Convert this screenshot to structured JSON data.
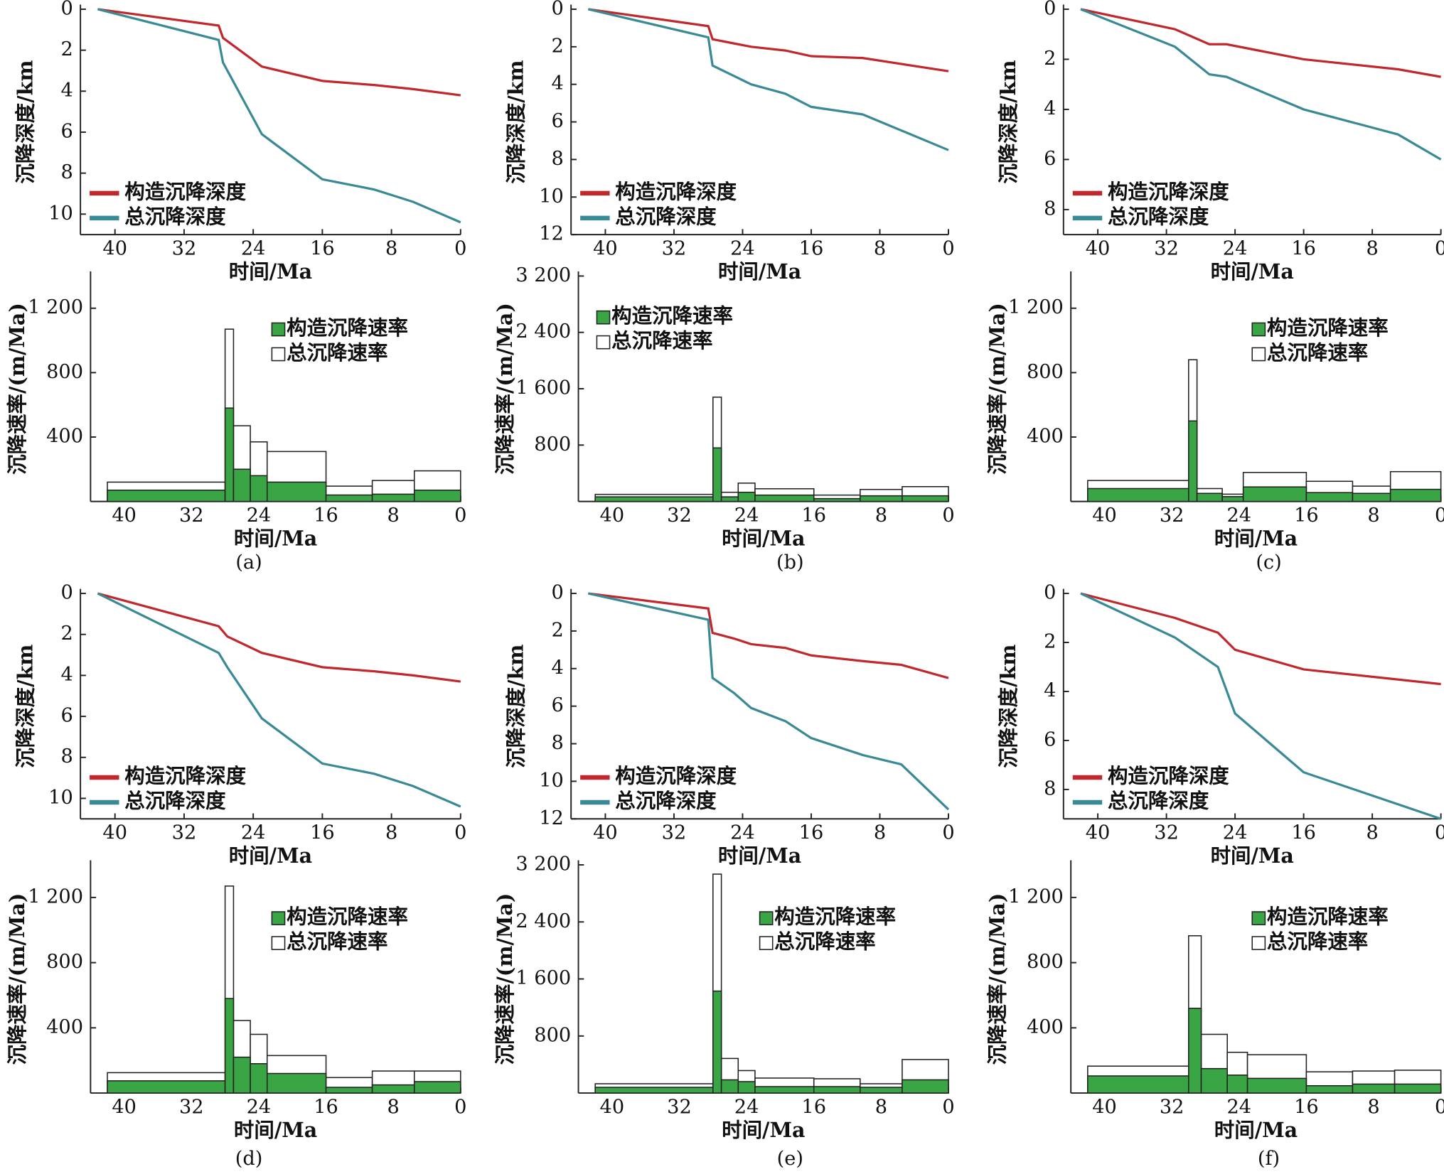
{
  "chart_data": [
    {
      "type": "line",
      "xlabel": "时间/Ma",
      "ylabel": "沉降深度/km",
      "xlim": [
        44,
        0
      ],
      "xticks": [
        40,
        32,
        24,
        16,
        8,
        0
      ],
      "ylim": [
        0,
        11
      ],
      "yticks": [
        0,
        2,
        4,
        6,
        8,
        10
      ],
      "y_inverted": true,
      "legend": "lower left",
      "x": [
        42,
        28,
        27.5,
        23,
        16,
        10,
        5.5,
        0
      ],
      "series": [
        {
          "name": "构造沉降深度",
          "color": "#c0282d",
          "values": [
            0,
            0.8,
            1.4,
            2.8,
            3.5,
            3.7,
            3.9,
            4.2
          ]
        },
        {
          "name": "总沉降深度",
          "color": "#3a8a96",
          "values": [
            0,
            1.5,
            2.6,
            6.1,
            8.3,
            8.8,
            9.4,
            10.4
          ]
        }
      ]
    },
    {
      "type": "histogram",
      "xlabel": "时间/Ma",
      "ylabel": "沉降速率/(m/Ma)",
      "xlim": [
        44,
        0
      ],
      "xticks": [
        40,
        32,
        24,
        16,
        8,
        0
      ],
      "ylim": [
        0,
        1400
      ],
      "yticks": [
        400,
        800,
        {
          "value": 1200,
          "label": "1 200"
        }
      ],
      "legend": "upper right",
      "bins": [
        42,
        28,
        27,
        25,
        23,
        16,
        10.5,
        5.5,
        0
      ],
      "series": [
        {
          "name": "构造沉降速率",
          "color": "#3aa544",
          "values": [
            70,
            580,
            200,
            160,
            120,
            40,
            45,
            70
          ]
        },
        {
          "name": "总沉降速率",
          "color": "#ffffff",
          "values": [
            120,
            1070,
            470,
            370,
            310,
            95,
            130,
            190
          ]
        }
      ]
    },
    {
      "type": "line",
      "xlabel": "时间/Ma",
      "ylabel": "沉降深度/km",
      "xlim": [
        44,
        0
      ],
      "xticks": [
        40,
        32,
        24,
        16,
        8,
        0
      ],
      "ylim": [
        0,
        12
      ],
      "yticks": [
        0,
        2,
        4,
        6,
        8,
        10,
        12
      ],
      "y_inverted": true,
      "legend": "lower left",
      "x": [
        42,
        28,
        27.5,
        23,
        19,
        16,
        10,
        0
      ],
      "series": [
        {
          "name": "构造沉降深度",
          "color": "#c0282d",
          "values": [
            0,
            0.9,
            1.6,
            2.0,
            2.2,
            2.5,
            2.6,
            3.3
          ]
        },
        {
          "name": "总沉降深度",
          "color": "#3a8a96",
          "values": [
            0,
            1.5,
            3.0,
            4.0,
            4.5,
            5.2,
            5.6,
            7.5
          ]
        }
      ]
    },
    {
      "type": "histogram",
      "xlabel": "时间/Ma",
      "ylabel": "沉降速率/(m/Ma)",
      "xlim": [
        44,
        0
      ],
      "xticks": [
        40,
        32,
        24,
        16,
        8,
        0
      ],
      "ylim": [
        0,
        3200
      ],
      "yticks": [
        800,
        {
          "value": 1600,
          "label": "1 600"
        },
        {
          "value": 2400,
          "label": "2 400"
        },
        {
          "value": 3200,
          "label": "3 200"
        }
      ],
      "legend": "upper left",
      "bins": [
        42,
        28,
        27,
        25,
        23,
        16,
        10.5,
        5.5,
        0
      ],
      "series": [
        {
          "name": "构造沉降速率",
          "color": "#3aa544",
          "values": [
            65,
            760,
            65,
            130,
            90,
            40,
            80,
            80
          ]
        },
        {
          "name": "总沉降速率",
          "color": "#ffffff",
          "values": [
            100,
            1480,
            130,
            260,
            180,
            90,
            170,
            210
          ]
        }
      ]
    },
    {
      "type": "line",
      "xlabel": "时间/Ma",
      "ylabel": "沉降深度/km",
      "xlim": [
        44,
        0
      ],
      "xticks": [
        40,
        32,
        24,
        16,
        8,
        0
      ],
      "ylim": [
        0,
        9
      ],
      "yticks": [
        0,
        2,
        4,
        6,
        8
      ],
      "y_inverted": true,
      "legend": "lower left",
      "x": [
        42,
        31,
        27,
        25,
        16,
        5,
        0
      ],
      "series": [
        {
          "name": "构造沉降深度",
          "color": "#c0282d",
          "values": [
            0,
            0.8,
            1.4,
            1.4,
            2.0,
            2.4,
            2.7
          ]
        },
        {
          "name": "总沉降深度",
          "color": "#3a8a96",
          "values": [
            0,
            1.5,
            2.6,
            2.7,
            4.0,
            5.0,
            6.0
          ]
        }
      ]
    },
    {
      "type": "histogram",
      "xlabel": "时间/Ma",
      "ylabel": "沉降速率/(m/Ma)",
      "xlim": [
        44,
        0
      ],
      "xticks": [
        40,
        32,
        24,
        16,
        8,
        0
      ],
      "ylim": [
        0,
        1400
      ],
      "yticks": [
        400,
        800,
        {
          "value": 1200,
          "label": "1 200"
        }
      ],
      "legend": "upper right",
      "bins": [
        42,
        30,
        29,
        26,
        23.5,
        16,
        10.5,
        6,
        0
      ],
      "series": [
        {
          "name": "构造沉降速率",
          "color": "#3aa544",
          "values": [
            80,
            500,
            50,
            30,
            90,
            55,
            50,
            75
          ]
        },
        {
          "name": "总沉降速率",
          "color": "#ffffff",
          "values": [
            130,
            880,
            80,
            45,
            180,
            125,
            95,
            185
          ]
        }
      ]
    },
    {
      "type": "line",
      "xlabel": "时间/Ma",
      "ylabel": "沉降深度/km",
      "xlim": [
        44,
        0
      ],
      "xticks": [
        40,
        32,
        24,
        16,
        8,
        0
      ],
      "ylim": [
        0,
        11
      ],
      "yticks": [
        0,
        2,
        4,
        6,
        8,
        10
      ],
      "y_inverted": true,
      "legend": "lower left",
      "x": [
        42,
        28,
        27,
        23,
        16,
        10,
        5.5,
        0
      ],
      "series": [
        {
          "name": "构造沉降深度",
          "color": "#c0282d",
          "values": [
            0,
            1.6,
            2.1,
            2.9,
            3.6,
            3.8,
            4.0,
            4.3
          ]
        },
        {
          "name": "总沉降深度",
          "color": "#3a8a96",
          "values": [
            0,
            2.9,
            3.6,
            6.1,
            8.3,
            8.8,
            9.4,
            10.4
          ]
        }
      ]
    },
    {
      "type": "histogram",
      "xlabel": "时间/Ma",
      "ylabel": "沉降速率/(m/Ma)",
      "xlim": [
        44,
        0
      ],
      "xticks": [
        40,
        32,
        24,
        16,
        8,
        0
      ],
      "ylim": [
        0,
        1400
      ],
      "yticks": [
        400,
        800,
        {
          "value": 1200,
          "label": "1 200"
        }
      ],
      "legend": "upper right",
      "bins": [
        42,
        28,
        27,
        25,
        23,
        16,
        10.5,
        5.5,
        0
      ],
      "series": [
        {
          "name": "构造沉降速率",
          "color": "#3aa544",
          "values": [
            75,
            580,
            220,
            180,
            120,
            35,
            50,
            70
          ]
        },
        {
          "name": "总沉降速率",
          "color": "#ffffff",
          "values": [
            125,
            1270,
            445,
            360,
            230,
            95,
            135,
            135
          ]
        }
      ]
    },
    {
      "type": "line",
      "xlabel": "时间/Ma",
      "ylabel": "沉降深度/km",
      "xlim": [
        44,
        0
      ],
      "xticks": [
        40,
        32,
        24,
        16,
        8,
        0
      ],
      "ylim": [
        0,
        12
      ],
      "yticks": [
        0,
        2,
        4,
        6,
        8,
        10,
        12
      ],
      "y_inverted": true,
      "legend": "lower left",
      "x": [
        42,
        28,
        27.5,
        25,
        23,
        19,
        16,
        10,
        5.5,
        0
      ],
      "series": [
        {
          "name": "构造沉降深度",
          "color": "#c0282d",
          "values": [
            0,
            0.8,
            2.1,
            2.4,
            2.7,
            2.9,
            3.3,
            3.6,
            3.8,
            4.5
          ]
        },
        {
          "name": "总沉降深度",
          "color": "#3a8a96",
          "values": [
            0,
            1.4,
            4.5,
            5.3,
            6.1,
            6.8,
            7.7,
            8.6,
            9.1,
            11.5
          ]
        }
      ]
    },
    {
      "type": "histogram",
      "xlabel": "时间/Ma",
      "ylabel": "沉降速率/(m/Ma)",
      "xlim": [
        44,
        0
      ],
      "xticks": [
        40,
        32,
        24,
        16,
        8,
        0
      ],
      "ylim": [
        0,
        3200
      ],
      "yticks": [
        800,
        {
          "value": 1600,
          "label": "1 600"
        },
        {
          "value": 2400,
          "label": "2 400"
        },
        {
          "value": 3200,
          "label": "3 200"
        }
      ],
      "legend": "upper right",
      "bins": [
        42,
        28,
        27,
        25,
        23,
        16,
        10.5,
        5.5,
        0
      ],
      "series": [
        {
          "name": "构造沉降速率",
          "color": "#3aa544",
          "values": [
            80,
            1430,
            185,
            160,
            90,
            90,
            80,
            185
          ]
        },
        {
          "name": "总沉降速率",
          "color": "#ffffff",
          "values": [
            130,
            3070,
            485,
            315,
            210,
            200,
            130,
            470
          ]
        }
      ]
    },
    {
      "type": "line",
      "xlabel": "时间/Ma",
      "ylabel": "沉降深度/km",
      "xlim": [
        44,
        0
      ],
      "xticks": [
        40,
        32,
        24,
        16,
        8,
        0
      ],
      "ylim": [
        0,
        9.2
      ],
      "yticks": [
        0,
        2,
        4,
        6,
        8
      ],
      "y_inverted": true,
      "legend": "lower left",
      "x": [
        42,
        31,
        26,
        24,
        16,
        0
      ],
      "series": [
        {
          "name": "构造沉降深度",
          "color": "#c0282d",
          "values": [
            0,
            1.0,
            1.6,
            2.3,
            3.1,
            3.7
          ]
        },
        {
          "name": "总沉降深度",
          "color": "#3a8a96",
          "values": [
            0,
            1.8,
            3.0,
            4.9,
            7.3,
            9.2
          ]
        }
      ]
    },
    {
      "type": "histogram",
      "xlabel": "时间/Ma",
      "ylabel": "沉降速率/(m/Ma)",
      "xlim": [
        44,
        0
      ],
      "xticks": [
        40,
        32,
        24,
        16,
        8,
        0
      ],
      "ylim": [
        0,
        1400
      ],
      "yticks": [
        400,
        800,
        {
          "value": 1200,
          "label": "1 200"
        }
      ],
      "legend": "upper right",
      "bins": [
        42,
        30,
        28.5,
        25.4,
        23,
        16,
        10.5,
        5.5,
        0
      ],
      "series": [
        {
          "name": "构造沉降速率",
          "color": "#3aa544",
          "values": [
            105,
            520,
            150,
            110,
            90,
            45,
            55,
            55
          ]
        },
        {
          "name": "总沉降速率",
          "color": "#ffffff",
          "values": [
            165,
            965,
            360,
            250,
            235,
            130,
            135,
            140
          ]
        }
      ]
    }
  ],
  "panel_labels": [
    "(a)",
    "(b)",
    "(c)",
    "(d)",
    "(e)",
    "(f)"
  ]
}
